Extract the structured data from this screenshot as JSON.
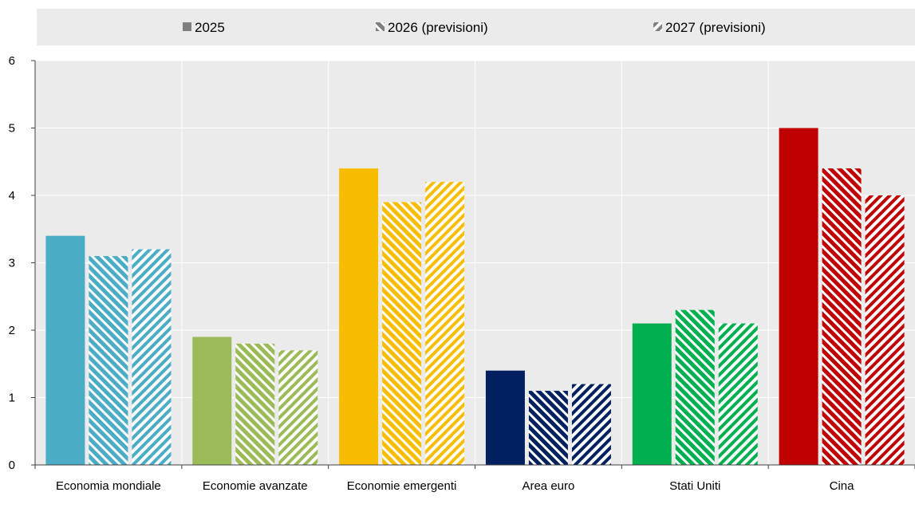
{
  "chart_data": {
    "type": "bar",
    "categories": [
      "Economia mondiale",
      "Economie avanzate",
      "Economie emergenti",
      "Area euro",
      "Stati Uniti",
      "Cina"
    ],
    "series": [
      {
        "name": "2025",
        "values": [
          3.4,
          1.9,
          4.4,
          1.4,
          2.1,
          5.0
        ]
      },
      {
        "name": "2026 (previsioni)",
        "values": [
          3.1,
          1.8,
          3.9,
          1.1,
          2.3,
          4.4
        ]
      },
      {
        "name": "2027 (previsioni)",
        "values": [
          3.2,
          1.7,
          4.2,
          1.2,
          2.1,
          4.0
        ]
      }
    ],
    "category_colors": [
      "#4bacc6",
      "#9bbb59",
      "#f9bd00",
      "#002060",
      "#00b050",
      "#c00000"
    ],
    "ylim": [
      0,
      6
    ],
    "yticks": [
      0,
      1,
      2,
      3,
      4,
      5,
      6
    ],
    "legend_position": "top",
    "grid": true,
    "title": "",
    "xlabel": "",
    "ylabel": ""
  }
}
